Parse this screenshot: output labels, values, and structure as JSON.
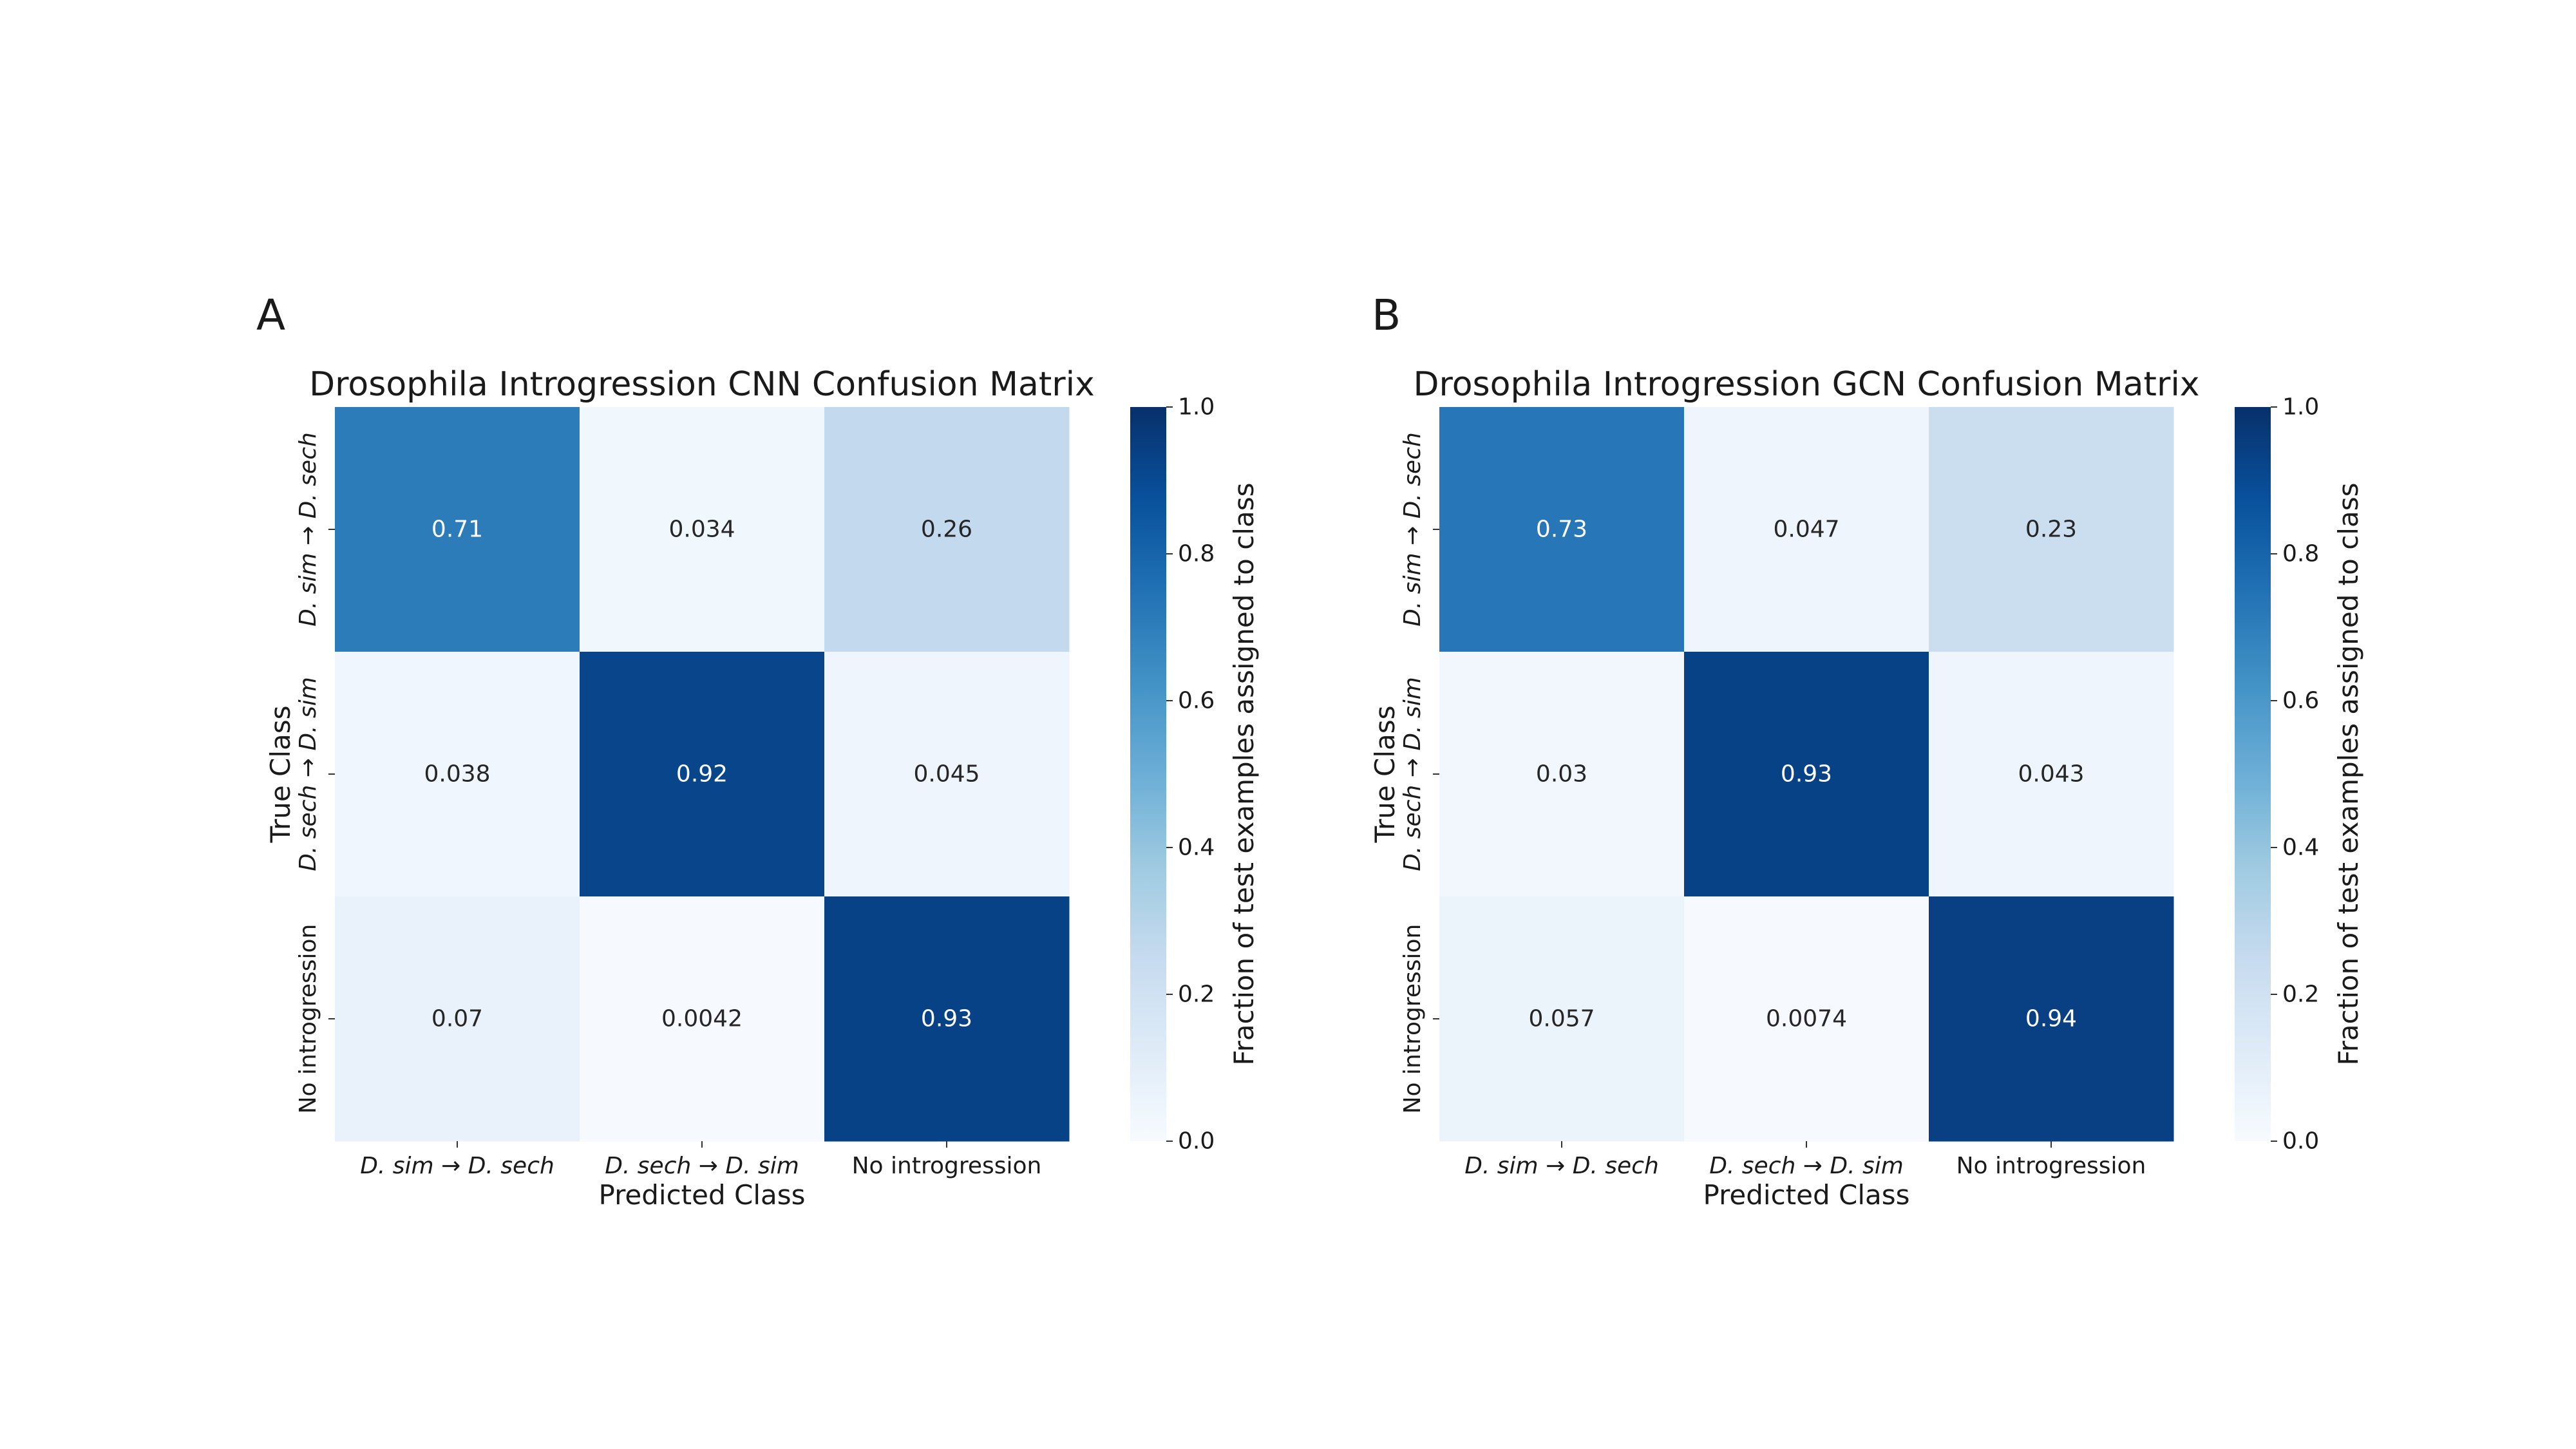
{
  "chart_data": [
    {
      "type": "heatmap",
      "panel_letter": "A",
      "title": "Drosophila Introgression CNN Confusion Matrix",
      "xlabel": "Predicted Class",
      "ylabel": "True Class",
      "x_categories": [
        {
          "sp1": "D. sim",
          "arrow": "→",
          "sp2": "D. sech"
        },
        {
          "sp1": "D. sech",
          "arrow": "→",
          "sp2": "D. sim"
        },
        {
          "plain": "No introgression"
        }
      ],
      "y_categories": [
        {
          "sp1": "D. sim",
          "arrow": "→",
          "sp2": "D. sech"
        },
        {
          "sp1": "D. sech",
          "arrow": "→",
          "sp2": "D. sim"
        },
        {
          "plain": "No introgression"
        }
      ],
      "values": [
        [
          0.71,
          0.034,
          0.26
        ],
        [
          0.038,
          0.92,
          0.045
        ],
        [
          0.07,
          0.0042,
          0.93
        ]
      ],
      "value_labels": [
        [
          "0.71",
          "0.034",
          "0.26"
        ],
        [
          "0.038",
          "0.92",
          "0.045"
        ],
        [
          "0.07",
          "0.0042",
          "0.93"
        ]
      ],
      "colorbar": {
        "label": "Fraction of test examples assigned to class",
        "range": [
          0,
          1
        ],
        "ticks": [
          "0.0",
          "0.2",
          "0.4",
          "0.6",
          "0.8",
          "1.0"
        ],
        "colormap": "Blues"
      }
    },
    {
      "type": "heatmap",
      "panel_letter": "B",
      "title": "Drosophila Introgression GCN Confusion Matrix",
      "xlabel": "Predicted Class",
      "ylabel": "True Class",
      "x_categories": [
        {
          "sp1": "D. sim",
          "arrow": "→",
          "sp2": "D. sech"
        },
        {
          "sp1": "D. sech",
          "arrow": "→",
          "sp2": "D. sim"
        },
        {
          "plain": "No introgression"
        }
      ],
      "y_categories": [
        {
          "sp1": "D. sim",
          "arrow": "→",
          "sp2": "D. sech"
        },
        {
          "sp1": "D. sech",
          "arrow": "→",
          "sp2": "D. sim"
        },
        {
          "plain": "No introgression"
        }
      ],
      "values": [
        [
          0.73,
          0.047,
          0.23
        ],
        [
          0.03,
          0.93,
          0.043
        ],
        [
          0.057,
          0.0074,
          0.94
        ]
      ],
      "value_labels": [
        [
          "0.73",
          "0.047",
          "0.23"
        ],
        [
          "0.03",
          "0.93",
          "0.043"
        ],
        [
          "0.057",
          "0.0074",
          "0.94"
        ]
      ],
      "colorbar": {
        "label": "Fraction of test examples assigned to class",
        "range": [
          0,
          1
        ],
        "ticks": [
          "0.0",
          "0.2",
          "0.4",
          "0.6",
          "0.8",
          "1.0"
        ],
        "colormap": "Blues"
      }
    }
  ]
}
